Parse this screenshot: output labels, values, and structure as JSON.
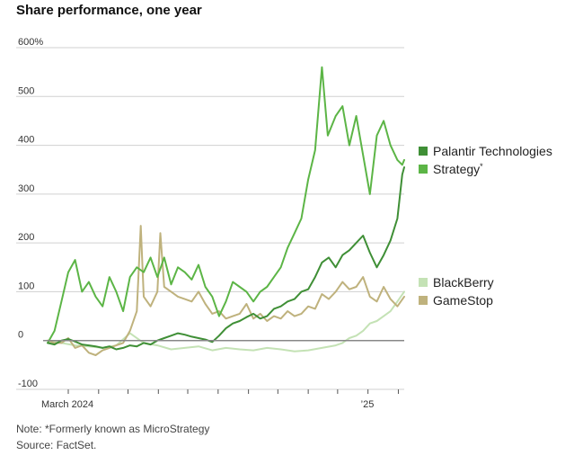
{
  "chart_data": {
    "type": "line",
    "title": "Share performance, one year",
    "xlabel": "",
    "ylabel": "",
    "y_ticks": [
      "600%",
      "500",
      "400",
      "300",
      "200",
      "100",
      "0",
      "-100"
    ],
    "y_tick_values": [
      600,
      500,
      400,
      300,
      200,
      100,
      0,
      -100
    ],
    "ylim": [
      -100,
      600
    ],
    "x_tick_labels": [
      "March 2024",
      "’25"
    ],
    "x_tick_dates": [
      "2024-03-01",
      "2025-01-01"
    ],
    "xlim": [
      "2024-02-08",
      "2025-02-07"
    ],
    "grid": true,
    "legend": "right",
    "colors": {
      "Palantir Technologies": "#3f8f36",
      "Strategy": "#5cb546",
      "BlackBerry": "#c4e2b5",
      "GameStop": "#bfb27d",
      "zero_line": "#888888",
      "grid": "#d0d0d0"
    },
    "series": [
      {
        "name": "Palantir Technologies",
        "x": [
          "2024-02-09",
          "2024-02-16",
          "2024-02-23",
          "2024-03-01",
          "2024-03-08",
          "2024-03-15",
          "2024-03-22",
          "2024-03-29",
          "2024-04-05",
          "2024-04-12",
          "2024-04-19",
          "2024-04-26",
          "2024-05-03",
          "2024-05-10",
          "2024-05-17",
          "2024-05-24",
          "2024-05-31",
          "2024-06-07",
          "2024-06-14",
          "2024-06-21",
          "2024-06-28",
          "2024-07-05",
          "2024-07-12",
          "2024-07-19",
          "2024-07-26",
          "2024-08-02",
          "2024-08-09",
          "2024-08-16",
          "2024-08-23",
          "2024-08-30",
          "2024-09-06",
          "2024-09-13",
          "2024-09-20",
          "2024-09-27",
          "2024-10-04",
          "2024-10-11",
          "2024-10-18",
          "2024-10-25",
          "2024-11-01",
          "2024-11-08",
          "2024-11-15",
          "2024-11-22",
          "2024-11-29",
          "2024-12-06",
          "2024-12-13",
          "2024-12-20",
          "2024-12-27",
          "2025-01-03",
          "2025-01-10",
          "2025-01-17",
          "2025-01-24",
          "2025-01-31",
          "2025-02-05",
          "2025-02-07"
        ],
        "values": [
          -5,
          -8,
          0,
          3,
          -2,
          -8,
          -10,
          -12,
          -15,
          -12,
          -18,
          -15,
          -10,
          -12,
          -5,
          -8,
          0,
          5,
          10,
          15,
          12,
          8,
          5,
          2,
          -3,
          10,
          25,
          35,
          40,
          48,
          55,
          45,
          50,
          65,
          70,
          80,
          85,
          100,
          105,
          130,
          160,
          170,
          150,
          175,
          185,
          200,
          215,
          180,
          150,
          175,
          205,
          250,
          340,
          355
        ]
      },
      {
        "name": "Strategy",
        "x": [
          "2024-02-09",
          "2024-02-16",
          "2024-02-23",
          "2024-03-01",
          "2024-03-08",
          "2024-03-15",
          "2024-03-22",
          "2024-03-29",
          "2024-04-05",
          "2024-04-12",
          "2024-04-19",
          "2024-04-26",
          "2024-05-03",
          "2024-05-10",
          "2024-05-17",
          "2024-05-24",
          "2024-05-31",
          "2024-06-07",
          "2024-06-14",
          "2024-06-21",
          "2024-06-28",
          "2024-07-05",
          "2024-07-12",
          "2024-07-19",
          "2024-07-26",
          "2024-08-02",
          "2024-08-09",
          "2024-08-16",
          "2024-08-23",
          "2024-08-30",
          "2024-09-06",
          "2024-09-13",
          "2024-09-20",
          "2024-09-27",
          "2024-10-04",
          "2024-10-11",
          "2024-10-18",
          "2024-10-25",
          "2024-11-01",
          "2024-11-08",
          "2024-11-15",
          "2024-11-21",
          "2024-11-29",
          "2024-12-06",
          "2024-12-13",
          "2024-12-20",
          "2024-12-27",
          "2025-01-03",
          "2025-01-10",
          "2025-01-17",
          "2025-01-24",
          "2025-01-31",
          "2025-02-05",
          "2025-02-07"
        ],
        "values": [
          -5,
          20,
          80,
          140,
          165,
          100,
          120,
          90,
          70,
          130,
          100,
          60,
          130,
          150,
          140,
          170,
          130,
          170,
          115,
          150,
          140,
          125,
          155,
          110,
          90,
          50,
          80,
          120,
          110,
          100,
          80,
          100,
          110,
          130,
          150,
          190,
          220,
          250,
          330,
          390,
          560,
          420,
          460,
          480,
          400,
          460,
          380,
          300,
          420,
          450,
          400,
          370,
          360,
          370
        ]
      },
      {
        "name": "BlackBerry",
        "x": [
          "2024-02-09",
          "2024-02-23",
          "2024-03-08",
          "2024-03-22",
          "2024-04-05",
          "2024-04-19",
          "2024-05-03",
          "2024-05-17",
          "2024-05-31",
          "2024-06-14",
          "2024-06-28",
          "2024-07-12",
          "2024-07-26",
          "2024-08-09",
          "2024-08-23",
          "2024-09-06",
          "2024-09-20",
          "2024-10-04",
          "2024-10-18",
          "2024-11-01",
          "2024-11-15",
          "2024-11-29",
          "2024-12-06",
          "2024-12-13",
          "2024-12-20",
          "2024-12-27",
          "2025-01-03",
          "2025-01-10",
          "2025-01-17",
          "2025-01-24",
          "2025-01-31",
          "2025-02-07"
        ],
        "values": [
          0,
          -5,
          -10,
          -12,
          -15,
          -10,
          15,
          -5,
          -10,
          -18,
          -15,
          -12,
          -20,
          -15,
          -18,
          -20,
          -15,
          -18,
          -22,
          -20,
          -15,
          -10,
          -5,
          5,
          10,
          20,
          35,
          40,
          50,
          60,
          80,
          100
        ]
      },
      {
        "name": "GameStop",
        "x": [
          "2024-02-09",
          "2024-02-16",
          "2024-02-23",
          "2024-03-01",
          "2024-03-08",
          "2024-03-15",
          "2024-03-22",
          "2024-03-29",
          "2024-04-05",
          "2024-04-12",
          "2024-04-19",
          "2024-04-26",
          "2024-05-03",
          "2024-05-10",
          "2024-05-14",
          "2024-05-17",
          "2024-05-24",
          "2024-05-31",
          "2024-06-03",
          "2024-06-07",
          "2024-06-14",
          "2024-06-21",
          "2024-06-28",
          "2024-07-05",
          "2024-07-12",
          "2024-07-19",
          "2024-07-26",
          "2024-08-02",
          "2024-08-09",
          "2024-08-16",
          "2024-08-23",
          "2024-08-30",
          "2024-09-06",
          "2024-09-13",
          "2024-09-20",
          "2024-09-27",
          "2024-10-04",
          "2024-10-11",
          "2024-10-18",
          "2024-10-25",
          "2024-11-01",
          "2024-11-08",
          "2024-11-15",
          "2024-11-22",
          "2024-11-29",
          "2024-12-06",
          "2024-12-13",
          "2024-12-20",
          "2024-12-27",
          "2025-01-03",
          "2025-01-10",
          "2025-01-17",
          "2025-01-24",
          "2025-01-31",
          "2025-02-07"
        ],
        "values": [
          0,
          -5,
          -5,
          5,
          -15,
          -10,
          -25,
          -30,
          -20,
          -15,
          -10,
          -5,
          20,
          60,
          235,
          90,
          70,
          100,
          220,
          110,
          100,
          90,
          85,
          80,
          100,
          75,
          55,
          60,
          45,
          50,
          55,
          75,
          45,
          55,
          40,
          50,
          45,
          60,
          50,
          55,
          70,
          65,
          95,
          85,
          100,
          120,
          105,
          110,
          130,
          90,
          80,
          110,
          85,
          70,
          90
        ]
      }
    ],
    "legend_groups": [
      {
        "labels": [
          "Palantir Technologies",
          "Strategy*"
        ]
      },
      {
        "labels": [
          "BlackBerry",
          "GameStop"
        ]
      }
    ]
  },
  "notes": {
    "line1": "Note: *Formerly known as MicroStrategy",
    "line2": "Source: FactSet."
  }
}
